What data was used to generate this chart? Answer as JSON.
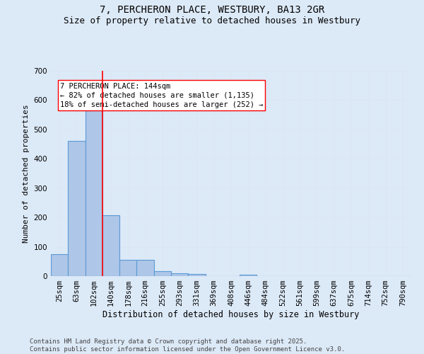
{
  "title": "7, PERCHERON PLACE, WESTBURY, BA13 2GR",
  "subtitle": "Size of property relative to detached houses in Westbury",
  "xlabel": "Distribution of detached houses by size in Westbury",
  "ylabel": "Number of detached properties",
  "categories": [
    "25sqm",
    "63sqm",
    "102sqm",
    "140sqm",
    "178sqm",
    "216sqm",
    "255sqm",
    "293sqm",
    "331sqm",
    "369sqm",
    "408sqm",
    "446sqm",
    "484sqm",
    "522sqm",
    "561sqm",
    "599sqm",
    "637sqm",
    "675sqm",
    "714sqm",
    "752sqm",
    "790sqm"
  ],
  "values": [
    75,
    462,
    567,
    207,
    55,
    55,
    18,
    10,
    8,
    0,
    0,
    5,
    0,
    0,
    0,
    0,
    0,
    0,
    0,
    0,
    0
  ],
  "bar_color": "#aec6e8",
  "bar_edge_color": "#5b9bd5",
  "grid_color": "#dce6f1",
  "background_color": "#dce9f7",
  "property_line_color": "red",
  "annotation_text": "7 PERCHERON PLACE: 144sqm\n← 82% of detached houses are smaller (1,135)\n18% of semi-detached houses are larger (252) →",
  "annotation_box_color": "white",
  "annotation_box_edge_color": "red",
  "ylim": [
    0,
    700
  ],
  "yticks": [
    0,
    100,
    200,
    300,
    400,
    500,
    600,
    700
  ],
  "footer": "Contains HM Land Registry data © Crown copyright and database right 2025.\nContains public sector information licensed under the Open Government Licence v3.0.",
  "title_fontsize": 10,
  "subtitle_fontsize": 9,
  "xlabel_fontsize": 8.5,
  "ylabel_fontsize": 8,
  "tick_fontsize": 7.5,
  "annotation_fontsize": 7.5,
  "footer_fontsize": 6.5
}
